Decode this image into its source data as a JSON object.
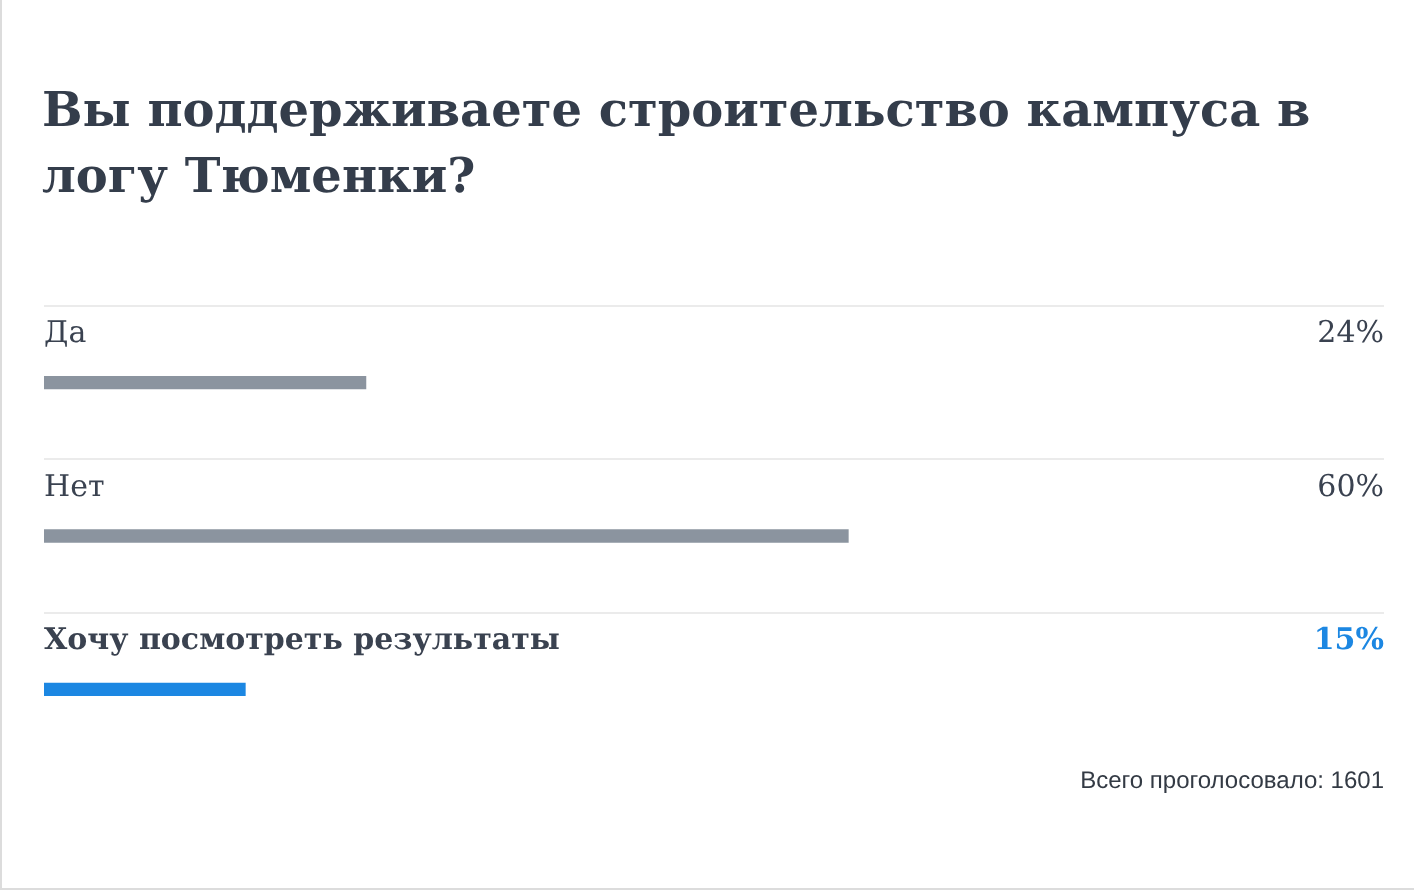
{
  "chart_data": {
    "type": "bar",
    "title": "Вы поддерживаете строительство кампуса в логу Тюменки?",
    "orientation": "horizontal",
    "categories": [
      "Да",
      "Нет",
      "Хочу посмотреть результаты"
    ],
    "values": [
      24,
      60,
      15
    ],
    "colors": [
      "#8b949f",
      "#8b949f",
      "#1c87e2"
    ],
    "value_labels": [
      "24%",
      "60%",
      "15%"
    ],
    "xlim": [
      0,
      100
    ],
    "tick_labels": "y",
    "grid": "y",
    "annotations": [
      "Всего проголосовало: 1601"
    ]
  }
}
